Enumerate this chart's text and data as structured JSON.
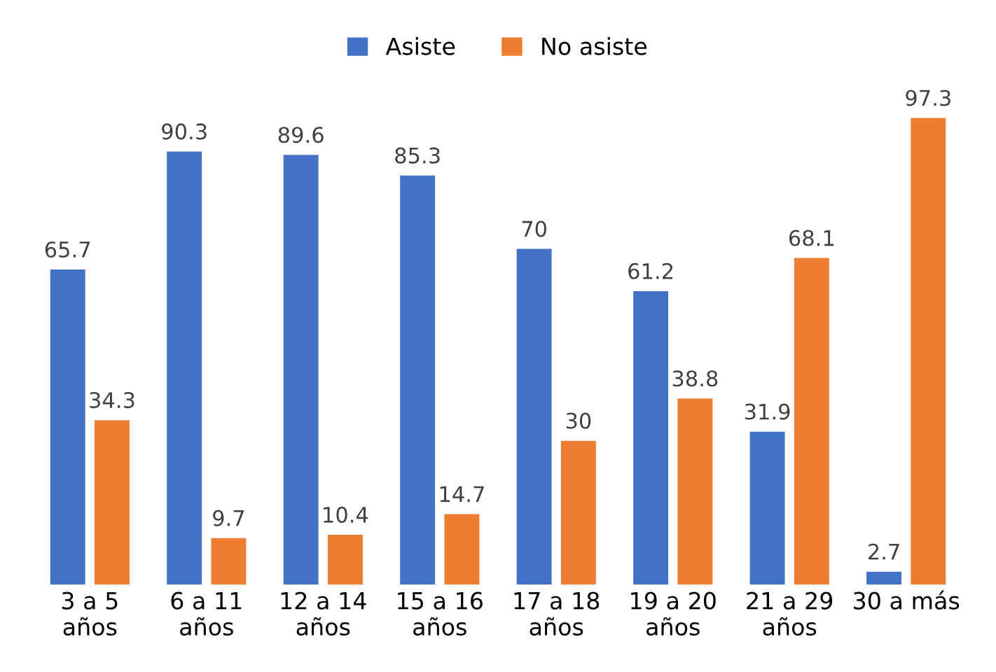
{
  "chart_data": {
    "type": "bar",
    "categories": [
      "3 a 5\naños",
      "6 a 11\naños",
      "12 a 14\naños",
      "15 a 16\naños",
      "17 a 18\naños",
      "19 a 20\naños",
      "21 a 29\naños",
      "30 a más"
    ],
    "series": [
      {
        "name": "Asiste",
        "color": "#4472c4",
        "values": [
          65.7,
          90.3,
          89.6,
          85.3,
          70,
          61.2,
          31.9,
          2.7
        ]
      },
      {
        "name": "No asiste",
        "color": "#ed7d31",
        "values": [
          34.3,
          9.7,
          10.4,
          14.7,
          30,
          38.8,
          68.1,
          97.3
        ]
      }
    ],
    "data_labels": true,
    "legend": "top",
    "grid": false
  }
}
